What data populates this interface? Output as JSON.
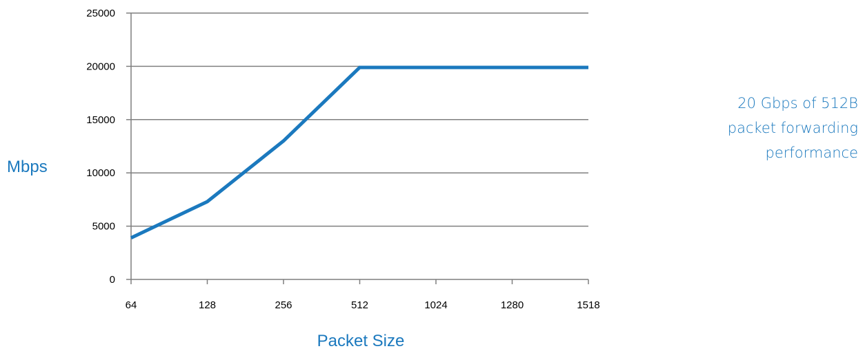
{
  "chart_data": {
    "type": "line",
    "title": "",
    "xlabel": "Packet Size",
    "ylabel": "Mbps",
    "categories": [
      "64",
      "128",
      "256",
      "512",
      "1024",
      "1280",
      "1518"
    ],
    "series": [
      {
        "values": [
          3900,
          7300,
          13000,
          19900,
          19900,
          19900,
          19900
        ]
      }
    ],
    "ylim": [
      0,
      25000
    ],
    "yticks": [
      0,
      5000,
      10000,
      15000,
      20000,
      25000
    ],
    "grid": true,
    "legend": "none",
    "colors": {
      "line": "#1b79be",
      "grid": "#7f7f7f",
      "label": "#1b79be",
      "annotation": "#1b79be"
    }
  },
  "annotation": {
    "lines": [
      "20 Gbps of 512B",
      "packet forwarding",
      "performance"
    ]
  }
}
